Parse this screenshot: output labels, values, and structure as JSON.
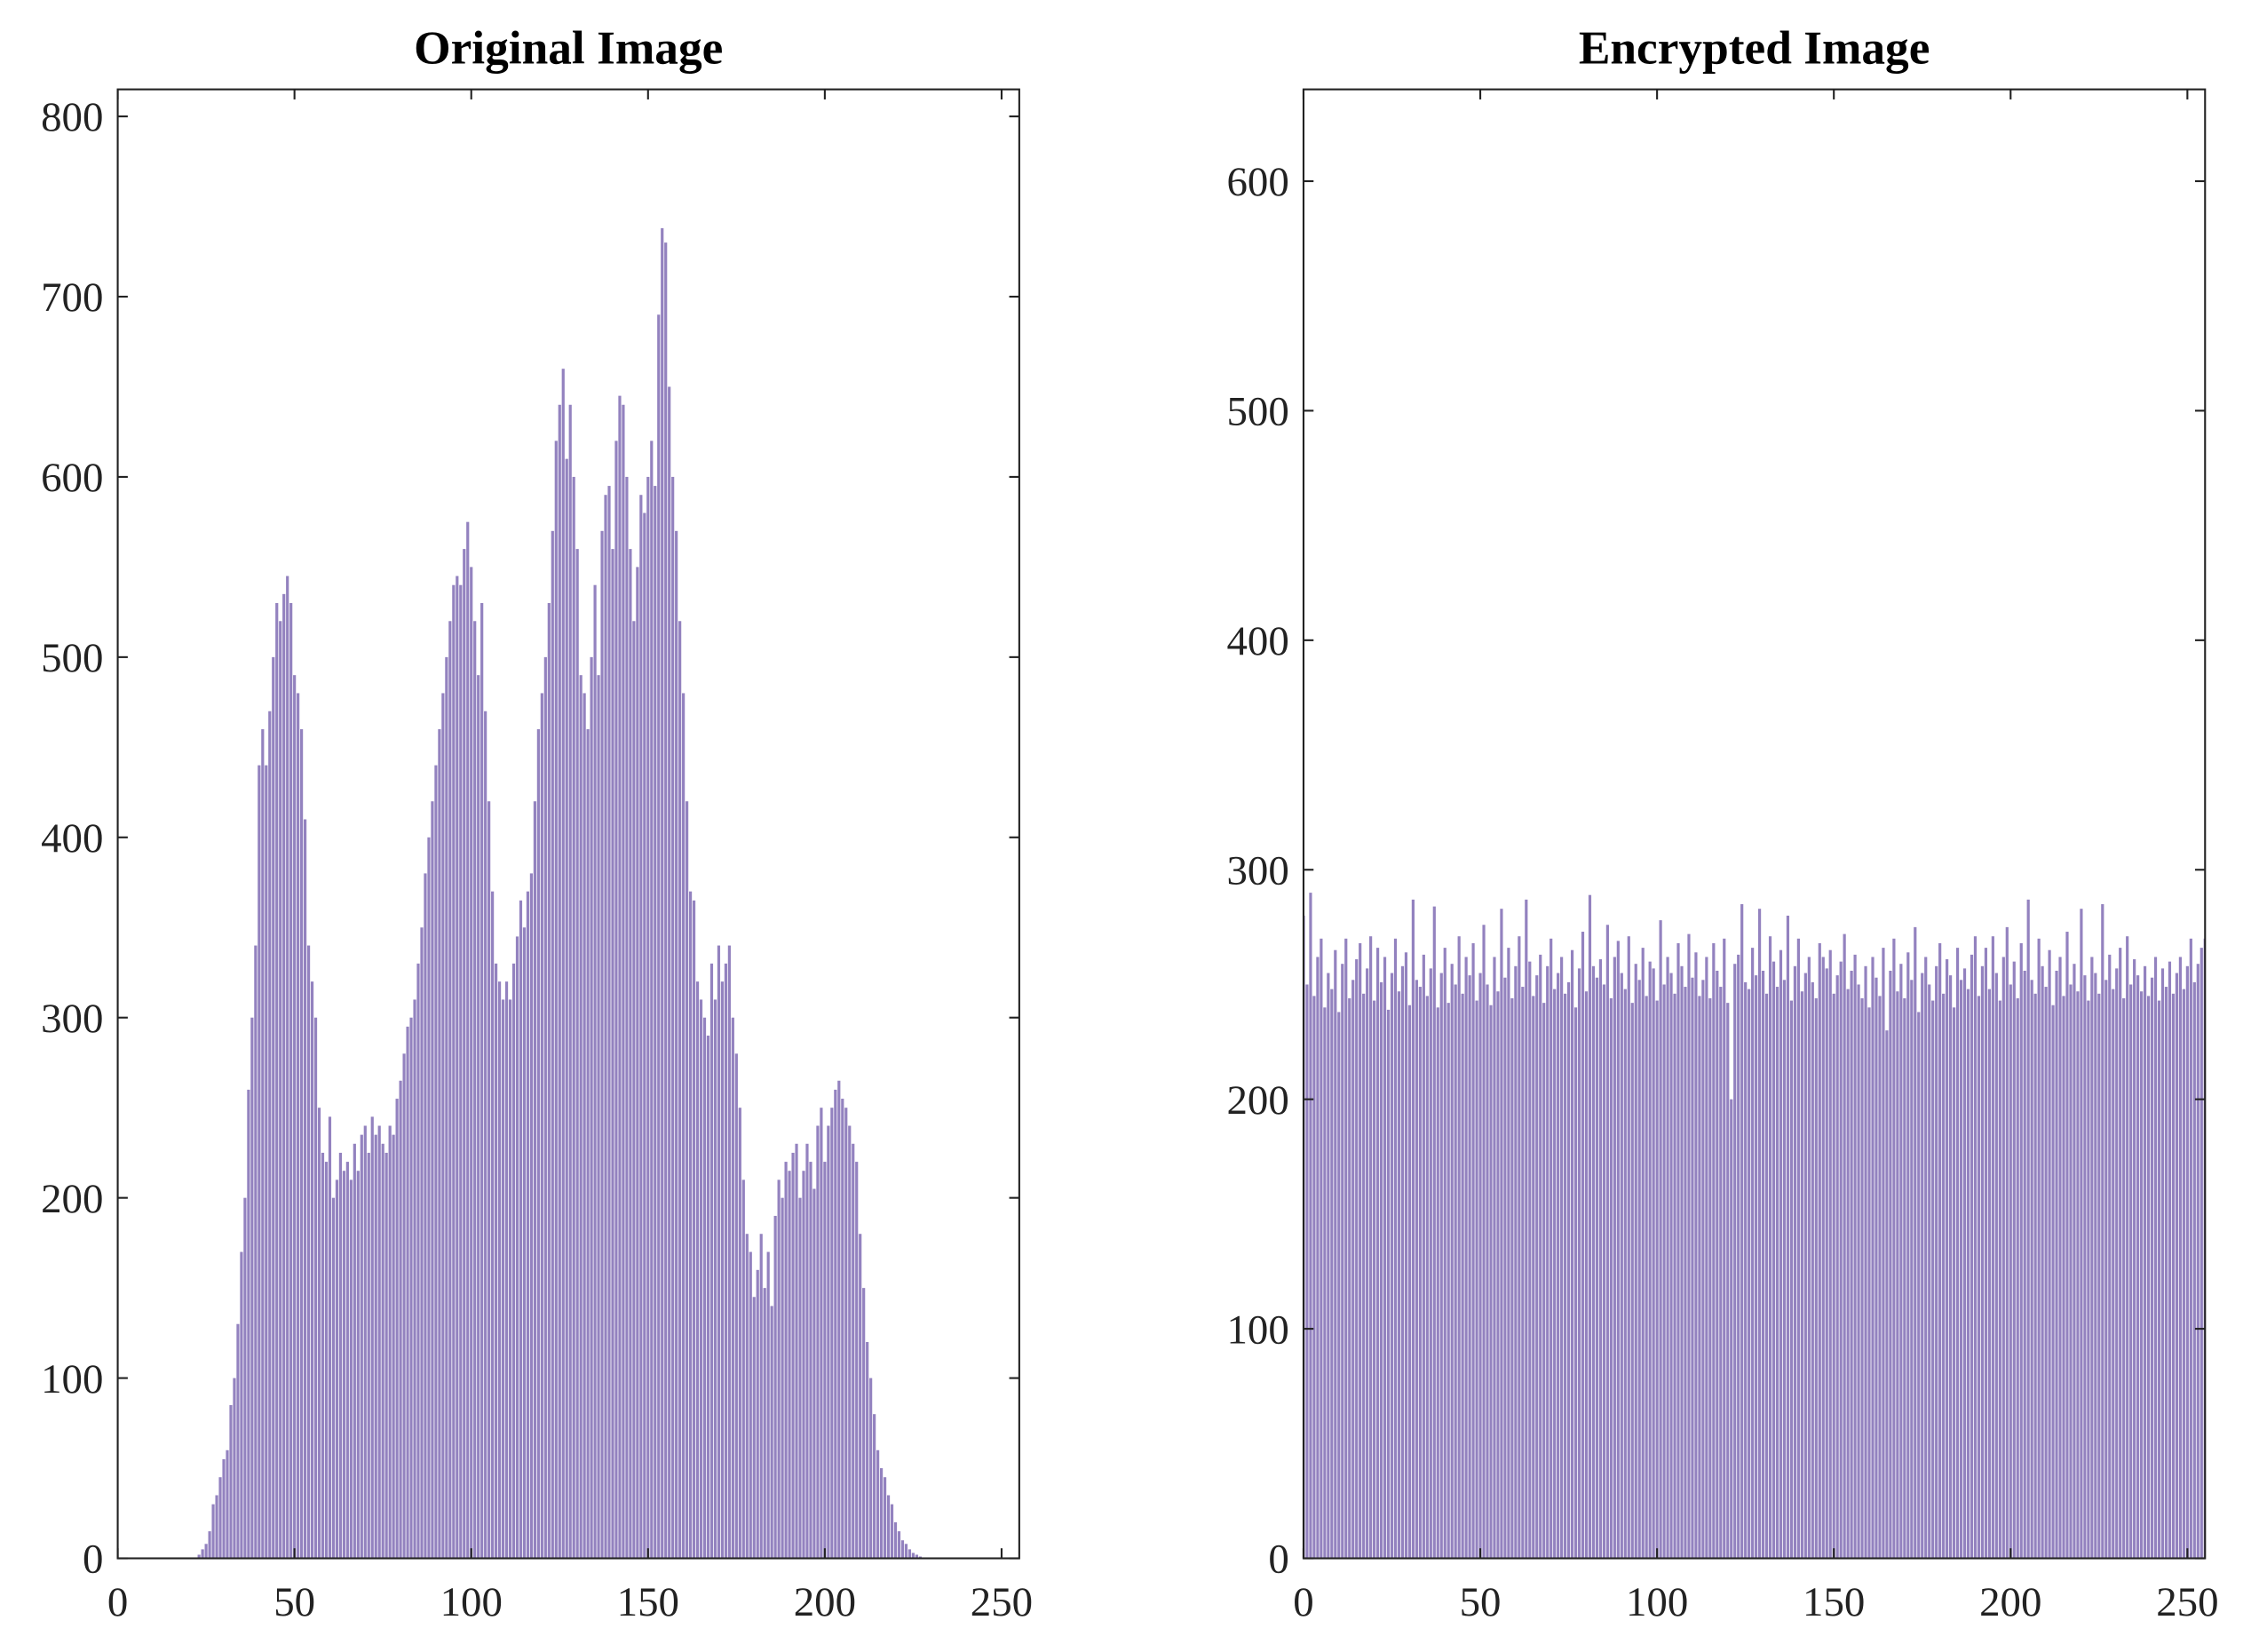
{
  "chart_data": [
    {
      "type": "bar",
      "title": "Original Image",
      "color": "#9382bf",
      "xlim": [
        0,
        255
      ],
      "ylim": [
        0,
        815
      ],
      "xticks": [
        0,
        50,
        100,
        150,
        200,
        250
      ],
      "yticks": [
        0,
        100,
        200,
        300,
        400,
        500,
        600,
        700,
        800
      ],
      "x": [
        0,
        1,
        2,
        3,
        4,
        5,
        6,
        7,
        8,
        9,
        10,
        11,
        12,
        13,
        14,
        15,
        16,
        17,
        18,
        19,
        20,
        21,
        22,
        23,
        24,
        25,
        26,
        27,
        28,
        29,
        30,
        31,
        32,
        33,
        34,
        35,
        36,
        37,
        38,
        39,
        40,
        41,
        42,
        43,
        44,
        45,
        46,
        47,
        48,
        49,
        50,
        51,
        52,
        53,
        54,
        55,
        56,
        57,
        58,
        59,
        60,
        61,
        62,
        63,
        64,
        65,
        66,
        67,
        68,
        69,
        70,
        71,
        72,
        73,
        74,
        75,
        76,
        77,
        78,
        79,
        80,
        81,
        82,
        83,
        84,
        85,
        86,
        87,
        88,
        89,
        90,
        91,
        92,
        93,
        94,
        95,
        96,
        97,
        98,
        99,
        100,
        101,
        102,
        103,
        104,
        105,
        106,
        107,
        108,
        109,
        110,
        111,
        112,
        113,
        114,
        115,
        116,
        117,
        118,
        119,
        120,
        121,
        122,
        123,
        124,
        125,
        126,
        127,
        128,
        129,
        130,
        131,
        132,
        133,
        134,
        135,
        136,
        137,
        138,
        139,
        140,
        141,
        142,
        143,
        144,
        145,
        146,
        147,
        148,
        149,
        150,
        151,
        152,
        153,
        154,
        155,
        156,
        157,
        158,
        159,
        160,
        161,
        162,
        163,
        164,
        165,
        166,
        167,
        168,
        169,
        170,
        171,
        172,
        173,
        174,
        175,
        176,
        177,
        178,
        179,
        180,
        181,
        182,
        183,
        184,
        185,
        186,
        187,
        188,
        189,
        190,
        191,
        192,
        193,
        194,
        195,
        196,
        197,
        198,
        199,
        200,
        201,
        202,
        203,
        204,
        205,
        206,
        207,
        208,
        209,
        210,
        211,
        212,
        213,
        214,
        215,
        216,
        217,
        218,
        219,
        220,
        221,
        222,
        223,
        224,
        225,
        226,
        227,
        228,
        229,
        230,
        231,
        232,
        233,
        234,
        235,
        236,
        237,
        238,
        239,
        240,
        241,
        242,
        243,
        244,
        245,
        246,
        247,
        248,
        249,
        250,
        251,
        252,
        253,
        254,
        255
      ],
      "values": [
        0,
        0,
        0,
        0,
        0,
        0,
        0,
        0,
        0,
        0,
        0,
        0,
        0,
        0,
        0,
        0,
        0,
        0,
        0,
        0,
        0,
        0,
        0,
        2,
        5,
        8,
        15,
        30,
        35,
        45,
        55,
        60,
        85,
        100,
        130,
        170,
        200,
        260,
        300,
        340,
        440,
        460,
        440,
        470,
        500,
        530,
        520,
        535,
        545,
        530,
        490,
        480,
        460,
        410,
        340,
        320,
        300,
        250,
        225,
        220,
        245,
        200,
        210,
        225,
        215,
        220,
        210,
        230,
        215,
        235,
        240,
        225,
        245,
        235,
        240,
        230,
        225,
        240,
        235,
        255,
        265,
        280,
        295,
        300,
        310,
        330,
        350,
        380,
        400,
        420,
        440,
        460,
        480,
        500,
        520,
        540,
        545,
        540,
        560,
        575,
        550,
        520,
        490,
        530,
        470,
        420,
        370,
        330,
        320,
        310,
        320,
        310,
        330,
        345,
        365,
        350,
        370,
        380,
        420,
        460,
        480,
        500,
        530,
        570,
        620,
        640,
        660,
        610,
        640,
        600,
        560,
        490,
        480,
        460,
        500,
        540,
        490,
        570,
        590,
        595,
        560,
        620,
        645,
        640,
        600,
        560,
        520,
        550,
        590,
        580,
        600,
        620,
        595,
        690,
        738,
        730,
        650,
        600,
        570,
        520,
        480,
        420,
        370,
        365,
        320,
        310,
        300,
        290,
        330,
        310,
        340,
        320,
        330,
        340,
        300,
        280,
        250,
        210,
        180,
        170,
        145,
        160,
        180,
        150,
        170,
        140,
        190,
        210,
        200,
        220,
        215,
        225,
        230,
        200,
        215,
        230,
        220,
        205,
        240,
        250,
        220,
        240,
        250,
        260,
        265,
        255,
        250,
        240,
        230,
        220,
        180,
        150,
        120,
        100,
        80,
        60,
        50,
        45,
        35,
        30,
        20,
        15,
        10,
        8,
        5,
        3,
        2,
        1,
        0,
        0,
        0,
        0,
        0,
        0,
        0,
        0,
        0,
        0,
        0,
        0,
        0,
        0,
        0,
        0,
        0,
        0,
        0,
        0,
        0,
        0,
        0,
        0,
        0,
        0,
        0,
        0
      ]
    },
    {
      "type": "bar",
      "title": "Encrypted Image",
      "color": "#9382bf",
      "xlim": [
        0,
        255
      ],
      "ylim": [
        0,
        640
      ],
      "xticks": [
        0,
        50,
        100,
        150,
        200,
        250
      ],
      "yticks": [
        0,
        100,
        200,
        300,
        400,
        500,
        600
      ],
      "x": [
        0,
        1,
        2,
        3,
        4,
        5,
        6,
        7,
        8,
        9,
        10,
        11,
        12,
        13,
        14,
        15,
        16,
        17,
        18,
        19,
        20,
        21,
        22,
        23,
        24,
        25,
        26,
        27,
        28,
        29,
        30,
        31,
        32,
        33,
        34,
        35,
        36,
        37,
        38,
        39,
        40,
        41,
        42,
        43,
        44,
        45,
        46,
        47,
        48,
        49,
        50,
        51,
        52,
        53,
        54,
        55,
        56,
        57,
        58,
        59,
        60,
        61,
        62,
        63,
        64,
        65,
        66,
        67,
        68,
        69,
        70,
        71,
        72,
        73,
        74,
        75,
        76,
        77,
        78,
        79,
        80,
        81,
        82,
        83,
        84,
        85,
        86,
        87,
        88,
        89,
        90,
        91,
        92,
        93,
        94,
        95,
        96,
        97,
        98,
        99,
        100,
        101,
        102,
        103,
        104,
        105,
        106,
        107,
        108,
        109,
        110,
        111,
        112,
        113,
        114,
        115,
        116,
        117,
        118,
        119,
        120,
        121,
        122,
        123,
        124,
        125,
        126,
        127,
        128,
        129,
        130,
        131,
        132,
        133,
        134,
        135,
        136,
        137,
        138,
        139,
        140,
        141,
        142,
        143,
        144,
        145,
        146,
        147,
        148,
        149,
        150,
        151,
        152,
        153,
        154,
        155,
        156,
        157,
        158,
        159,
        160,
        161,
        162,
        163,
        164,
        165,
        166,
        167,
        168,
        169,
        170,
        171,
        172,
        173,
        174,
        175,
        176,
        177,
        178,
        179,
        180,
        181,
        182,
        183,
        184,
        185,
        186,
        187,
        188,
        189,
        190,
        191,
        192,
        193,
        194,
        195,
        196,
        197,
        198,
        199,
        200,
        201,
        202,
        203,
        204,
        205,
        206,
        207,
        208,
        209,
        210,
        211,
        212,
        213,
        214,
        215,
        216,
        217,
        218,
        219,
        220,
        221,
        222,
        223,
        224,
        225,
        226,
        227,
        228,
        229,
        230,
        231,
        232,
        233,
        234,
        235,
        236,
        237,
        238,
        239,
        240,
        241,
        242,
        243,
        244,
        245,
        246,
        247,
        248,
        249,
        250,
        251,
        252,
        253,
        254,
        255
      ],
      "values": [
        280,
        250,
        290,
        245,
        262,
        270,
        240,
        255,
        248,
        265,
        238,
        259,
        270,
        244,
        252,
        261,
        268,
        246,
        257,
        271,
        243,
        266,
        251,
        262,
        239,
        255,
        270,
        247,
        258,
        264,
        241,
        287,
        252,
        249,
        263,
        245,
        257,
        284,
        240,
        255,
        266,
        242,
        259,
        250,
        271,
        246,
        262,
        254,
        268,
        243,
        255,
        276,
        250,
        241,
        262,
        247,
        283,
        253,
        266,
        244,
        258,
        271,
        249,
        287,
        260,
        245,
        254,
        263,
        242,
        258,
        270,
        248,
        255,
        262,
        246,
        251,
        265,
        240,
        257,
        273,
        247,
        289,
        258,
        253,
        261,
        250,
        276,
        244,
        262,
        269,
        255,
        248,
        271,
        242,
        259,
        252,
        266,
        245,
        260,
        257,
        243,
        278,
        250,
        262,
        255,
        246,
        268,
        258,
        249,
        272,
        253,
        264,
        245,
        252,
        262,
        244,
        268,
        256,
        249,
        270,
        242,
        200,
        259,
        263,
        285,
        251,
        248,
        266,
        254,
        283,
        256,
        246,
        271,
        260,
        249,
        265,
        252,
        280,
        243,
        258,
        270,
        247,
        255,
        262,
        251,
        244,
        268,
        262,
        257,
        265,
        246,
        254,
        260,
        272,
        248,
        256,
        263,
        250,
        244,
        258,
        240,
        262,
        253,
        245,
        266,
        230,
        256,
        270,
        247,
        259,
        244,
        264,
        252,
        275,
        238,
        255,
        262,
        250,
        243,
        258,
        268,
        246,
        261,
        254,
        240,
        266,
        252,
        257,
        248,
        263,
        271,
        245,
        258,
        266,
        248,
        271,
        255,
        243,
        262,
        275,
        250,
        260,
        244,
        268,
        256,
        287,
        252,
        246,
        270,
        258,
        249,
        265,
        241,
        256,
        262,
        245,
        273,
        250,
        259,
        247,
        283,
        254,
        243,
        262,
        255,
        246,
        285,
        252,
        263,
        248,
        257,
        266,
        244,
        271,
        250,
        261,
        254,
        247,
        258,
        245,
        253,
        262,
        243,
        257,
        249,
        260,
        246,
        255,
        262,
        248,
        258,
        270,
        251,
        259,
        266,
        270
      ]
    }
  ]
}
